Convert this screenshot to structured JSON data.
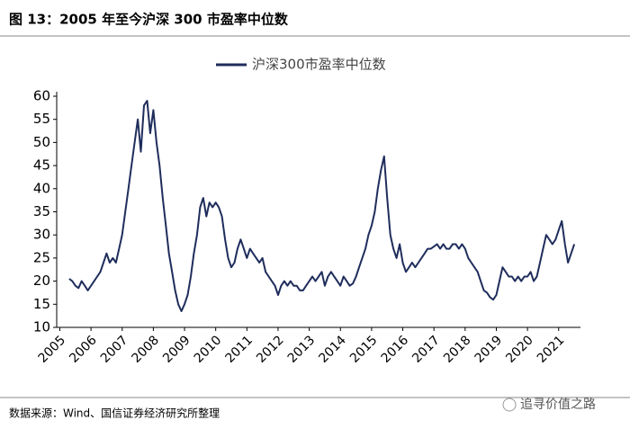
{
  "chart_data": {
    "type": "line",
    "title": "图 13：2005 年至今沪深 300 市盈率中位数",
    "source": "数据来源：Wind、国信证券经济研究所整理",
    "watermark": "追寻价值之路",
    "x": [
      2005.3,
      2005.4,
      2005.5,
      2005.6,
      2005.7,
      2005.8,
      2005.9,
      2006.0,
      2006.1,
      2006.2,
      2006.3,
      2006.4,
      2006.5,
      2006.6,
      2006.7,
      2006.8,
      2006.9,
      2007.0,
      2007.1,
      2007.2,
      2007.3,
      2007.4,
      2007.5,
      2007.6,
      2007.7,
      2007.8,
      2007.9,
      2008.0,
      2008.1,
      2008.2,
      2008.3,
      2008.4,
      2008.5,
      2008.6,
      2008.7,
      2008.8,
      2008.9,
      2009.0,
      2009.1,
      2009.2,
      2009.3,
      2009.4,
      2009.5,
      2009.6,
      2009.7,
      2009.8,
      2009.9,
      2010.0,
      2010.1,
      2010.2,
      2010.3,
      2010.4,
      2010.5,
      2010.6,
      2010.7,
      2010.8,
      2010.9,
      2011.0,
      2011.1,
      2011.2,
      2011.3,
      2011.4,
      2011.5,
      2011.6,
      2011.7,
      2011.8,
      2011.9,
      2012.0,
      2012.1,
      2012.2,
      2012.3,
      2012.4,
      2012.5,
      2012.6,
      2012.7,
      2012.8,
      2012.9,
      2013.0,
      2013.1,
      2013.2,
      2013.3,
      2013.4,
      2013.5,
      2013.6,
      2013.7,
      2013.8,
      2013.9,
      2014.0,
      2014.1,
      2014.2,
      2014.3,
      2014.4,
      2014.5,
      2014.6,
      2014.7,
      2014.8,
      2014.9,
      2015.0,
      2015.1,
      2015.2,
      2015.3,
      2015.4,
      2015.5,
      2015.6,
      2015.7,
      2015.8,
      2015.9,
      2016.0,
      2016.1,
      2016.2,
      2016.3,
      2016.4,
      2016.5,
      2016.6,
      2016.7,
      2016.8,
      2016.9,
      2017.0,
      2017.1,
      2017.2,
      2017.3,
      2017.4,
      2017.5,
      2017.6,
      2017.7,
      2017.8,
      2017.9,
      2018.0,
      2018.1,
      2018.2,
      2018.3,
      2018.4,
      2018.5,
      2018.6,
      2018.7,
      2018.8,
      2018.9,
      2019.0,
      2019.1,
      2019.2,
      2019.3,
      2019.4,
      2019.5,
      2019.6,
      2019.7,
      2019.8,
      2019.9,
      2020.0,
      2020.1,
      2020.2,
      2020.3,
      2020.4,
      2020.5,
      2020.6,
      2020.7,
      2020.8,
      2020.9,
      2021.0,
      2021.1,
      2021.2,
      2021.3,
      2021.4,
      2021.5
    ],
    "series": [
      {
        "name": "沪深300市盈率中位数",
        "color": "#1f2d5c",
        "values": [
          20.5,
          20,
          19,
          18.5,
          20,
          19,
          18,
          19,
          20,
          21,
          22,
          24,
          26,
          24,
          25,
          24,
          27,
          30,
          35,
          40,
          45,
          50,
          55,
          48,
          58,
          59,
          52,
          57,
          50,
          45,
          38,
          32,
          26,
          22,
          18,
          15,
          13.5,
          15,
          17,
          21,
          26,
          30,
          36,
          38,
          34,
          37,
          36,
          37,
          36,
          34,
          29,
          25,
          23,
          24,
          27,
          29,
          27,
          25,
          27,
          26,
          25,
          24,
          25,
          22,
          21,
          20,
          19,
          17,
          19,
          20,
          19,
          20,
          19,
          19,
          18,
          18,
          19,
          20,
          21,
          20,
          21,
          22,
          19,
          21,
          22,
          21,
          20,
          19,
          21,
          20,
          19,
          19.5,
          21,
          23,
          25,
          27,
          30,
          32,
          35,
          40,
          44,
          47,
          38,
          30,
          27,
          25,
          28,
          24,
          22,
          23,
          24,
          23,
          24,
          25,
          26,
          27,
          27,
          27.5,
          28,
          27,
          28,
          27,
          27,
          28,
          28,
          27,
          28,
          27,
          25,
          24,
          23,
          22,
          20,
          18,
          17.5,
          16.5,
          16,
          17,
          20,
          23,
          22,
          21,
          21,
          20,
          21,
          20,
          21,
          21,
          22,
          20,
          21,
          24,
          27,
          30,
          29,
          28,
          29,
          31,
          33,
          28,
          24,
          26,
          28
        ]
      }
    ],
    "xlim": [
      2004.9,
      2021.7
    ],
    "xticks": [
      2005,
      2006,
      2007,
      2008,
      2009,
      2010,
      2011,
      2012,
      2013,
      2014,
      2015,
      2016,
      2017,
      2018,
      2019,
      2020,
      2021
    ],
    "ylim": [
      10,
      60
    ],
    "yticks": [
      10,
      15,
      20,
      25,
      30,
      35,
      40,
      45,
      50,
      55,
      60
    ],
    "legend": "top"
  }
}
